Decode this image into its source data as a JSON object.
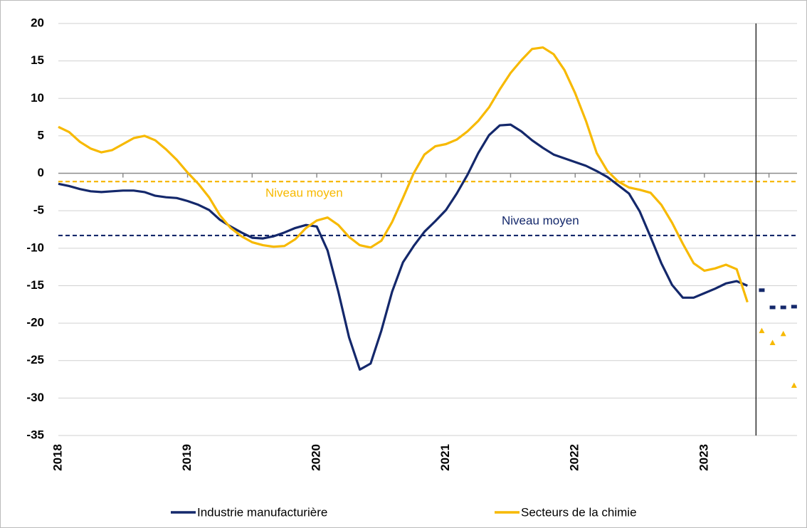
{
  "chart_data": {
    "type": "line",
    "categories": [
      "2018",
      null,
      null,
      null,
      null,
      null,
      null,
      null,
      null,
      null,
      null,
      null,
      "2019",
      null,
      null,
      null,
      null,
      null,
      null,
      null,
      null,
      null,
      null,
      null,
      "2020",
      null,
      null,
      null,
      null,
      null,
      null,
      null,
      null,
      null,
      null,
      null,
      "2021",
      null,
      null,
      null,
      null,
      null,
      null,
      null,
      null,
      null,
      null,
      null,
      "2022",
      null,
      null,
      null,
      null,
      null,
      null,
      null,
      null,
      null,
      null,
      null,
      "2023",
      null,
      null,
      null,
      null,
      null,
      null,
      null,
      null
    ],
    "series": [
      {
        "name": "Industrie manufacturière",
        "color": "#14286b",
        "values": [
          -1.4,
          -1.7,
          -2.1,
          -2.4,
          -2.5,
          -2.4,
          -2.3,
          -2.3,
          -2.5,
          -3.0,
          -3.2,
          -3.3,
          -3.7,
          -4.2,
          -4.9,
          -6.2,
          -7.1,
          -7.9,
          -8.6,
          -8.7,
          -8.4,
          -7.9,
          -7.3,
          -6.9,
          -7.1,
          -10.3,
          -15.8,
          -21.9,
          -26.2,
          -25.4,
          -21.0,
          -15.8,
          -11.9,
          -9.7,
          -7.8,
          -6.4,
          -4.9,
          -2.7,
          -0.2,
          2.7,
          5.1,
          6.4,
          6.5,
          5.6,
          4.4,
          3.4,
          2.5,
          2.0,
          1.5,
          1.0,
          0.3,
          -0.5,
          -1.6,
          -2.7,
          -5.1,
          -8.5,
          -12.0,
          -14.9,
          -16.6,
          -16.6,
          -16.0,
          -15.4,
          -14.7,
          -14.4,
          -15.0,
          null,
          null,
          null,
          null
        ],
        "forecast_values": [
          null,
          null,
          null,
          null,
          null,
          null,
          null,
          null,
          null,
          null,
          null,
          null,
          null,
          null,
          null,
          null,
          null,
          null,
          null,
          null,
          null,
          null,
          null,
          null,
          null,
          null,
          null,
          null,
          null,
          null,
          null,
          null,
          null,
          null,
          null,
          null,
          null,
          null,
          null,
          null,
          null,
          null,
          null,
          null,
          null,
          null,
          null,
          null,
          null,
          null,
          null,
          null,
          null,
          null,
          null,
          null,
          null,
          null,
          null,
          null,
          null,
          null,
          null,
          null,
          null,
          -15.6,
          -17.9,
          -17.9,
          -17.8
        ]
      },
      {
        "name": "Secteurs de la chimie",
        "color": "#f7b900",
        "values": [
          6.2,
          5.5,
          4.2,
          3.3,
          2.8,
          3.1,
          3.9,
          4.7,
          5.0,
          4.4,
          3.2,
          1.8,
          0.1,
          -1.4,
          -3.2,
          -5.6,
          -7.3,
          -8.4,
          -9.2,
          -9.6,
          -9.8,
          -9.7,
          -8.8,
          -7.3,
          -6.3,
          -5.9,
          -6.9,
          -8.5,
          -9.6,
          -9.9,
          -9.0,
          -6.5,
          -3.3,
          0.0,
          2.5,
          3.6,
          3.9,
          4.5,
          5.6,
          7.0,
          8.8,
          11.2,
          13.4,
          15.1,
          16.6,
          16.8,
          15.9,
          13.8,
          10.7,
          7.0,
          2.7,
          0.3,
          -1.1,
          -1.9,
          -2.2,
          -2.6,
          -4.2,
          -6.6,
          -9.4,
          -12.0,
          -13.0,
          -12.7,
          -12.2,
          -12.8,
          -17.2,
          null,
          null,
          null,
          null
        ],
        "forecast_values": [
          null,
          null,
          null,
          null,
          null,
          null,
          null,
          null,
          null,
          null,
          null,
          null,
          null,
          null,
          null,
          null,
          null,
          null,
          null,
          null,
          null,
          null,
          null,
          null,
          null,
          null,
          null,
          null,
          null,
          null,
          null,
          null,
          null,
          null,
          null,
          null,
          null,
          null,
          null,
          null,
          null,
          null,
          null,
          null,
          null,
          null,
          null,
          null,
          null,
          null,
          null,
          null,
          null,
          null,
          null,
          null,
          null,
          null,
          null,
          null,
          null,
          null,
          null,
          null,
          null,
          -21.0,
          -22.6,
          -21.4,
          -28.3
        ]
      }
    ],
    "reference_lines": [
      {
        "label": "Niveau moyen",
        "value": -1.1,
        "color": "#f7b900"
      },
      {
        "label": "Niveau moyen",
        "value": -8.3,
        "color": "#14286b"
      }
    ],
    "ylim": [
      -35,
      20
    ],
    "yticks": [
      20,
      15,
      10,
      5,
      0,
      -5,
      -10,
      -15,
      -20,
      -25,
      -30,
      -35
    ],
    "grid": true
  }
}
